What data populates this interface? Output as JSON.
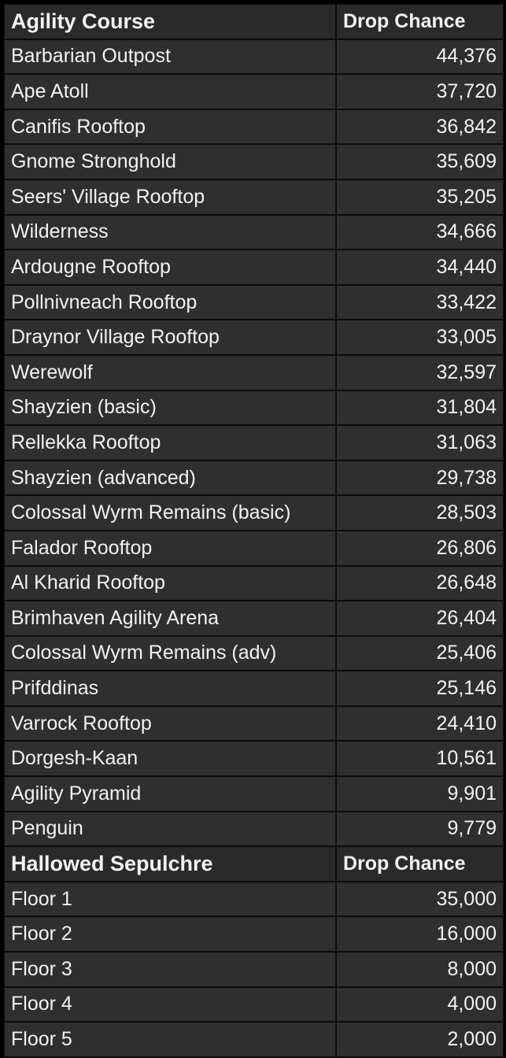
{
  "sections": [
    {
      "header": {
        "name": "Agility Course",
        "value": "Drop Chance"
      },
      "rows": [
        {
          "name": "Barbarian Outpost",
          "value": "44,376"
        },
        {
          "name": "Ape Atoll",
          "value": "37,720"
        },
        {
          "name": "Canifis Rooftop",
          "value": "36,842"
        },
        {
          "name": "Gnome Stronghold",
          "value": "35,609"
        },
        {
          "name": "Seers' Village Rooftop",
          "value": "35,205"
        },
        {
          "name": "Wilderness",
          "value": "34,666"
        },
        {
          "name": "Ardougne Rooftop",
          "value": "34,440"
        },
        {
          "name": "Pollnivneach Rooftop",
          "value": "33,422"
        },
        {
          "name": "Draynor Village Rooftop",
          "value": "33,005"
        },
        {
          "name": "Werewolf",
          "value": "32,597"
        },
        {
          "name": "Shayzien (basic)",
          "value": "31,804"
        },
        {
          "name": "Rellekka Rooftop",
          "value": "31,063"
        },
        {
          "name": "Shayzien (advanced)",
          "value": "29,738"
        },
        {
          "name": "Colossal Wyrm Remains (basic)",
          "value": "28,503"
        },
        {
          "name": "Falador Rooftop",
          "value": "26,806"
        },
        {
          "name": "Al Kharid Rooftop",
          "value": "26,648"
        },
        {
          "name": "Brimhaven Agility Arena",
          "value": "26,404"
        },
        {
          "name": "Colossal Wyrm Remains (adv)",
          "value": "25,406"
        },
        {
          "name": "Prifddinas",
          "value": "25,146"
        },
        {
          "name": "Varrock Rooftop",
          "value": "24,410"
        },
        {
          "name": "Dorgesh-Kaan",
          "value": "10,561"
        },
        {
          "name": "Agility Pyramid",
          "value": "9,901"
        },
        {
          "name": "Penguin",
          "value": "9,779"
        }
      ]
    },
    {
      "header": {
        "name": "Hallowed Sepulchre",
        "value": "Drop Chance"
      },
      "rows": [
        {
          "name": "Floor 1",
          "value": "35,000"
        },
        {
          "name": "Floor 2",
          "value": "16,000"
        },
        {
          "name": "Floor 3",
          "value": "8,000"
        },
        {
          "name": "Floor 4",
          "value": "4,000"
        },
        {
          "name": "Floor 5",
          "value": "2,000"
        }
      ]
    }
  ],
  "colors": {
    "background": "#000000",
    "cell": "#2f2f2f",
    "border": "#0b0b0b",
    "text": "#f2f2f2"
  }
}
